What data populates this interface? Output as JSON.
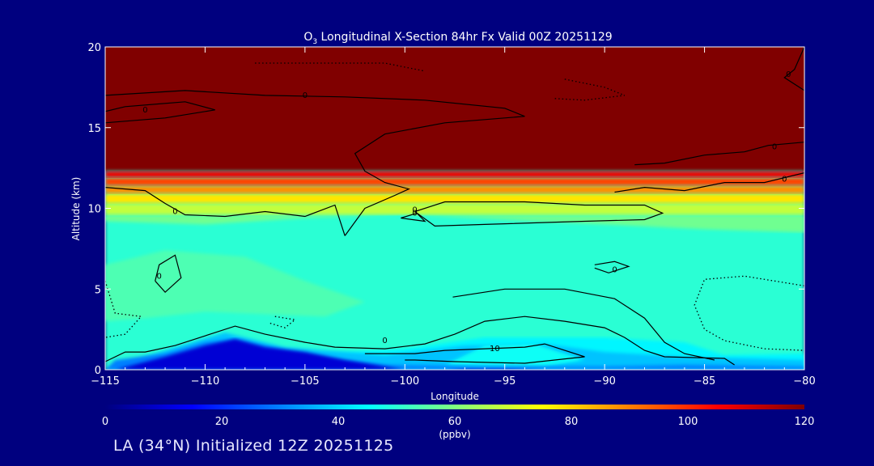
{
  "chart_data": {
    "type": "heatmap",
    "title_prefix": "O",
    "title_sub": "3",
    "title_rest": " Longitudinal X-Section 84hr  Fx Valid 00Z 20251129",
    "xlabel": "Longitude",
    "ylabel": "Altitude (km)",
    "xlim": [
      -115,
      -80
    ],
    "ylim": [
      0,
      20
    ],
    "xticks": [
      {
        "value": -115,
        "label": "−115"
      },
      {
        "value": -110,
        "label": "−110"
      },
      {
        "value": -105,
        "label": "−105"
      },
      {
        "value": -100,
        "label": "−100"
      },
      {
        "value": -95,
        "label": "−95"
      },
      {
        "value": -90,
        "label": "−90"
      },
      {
        "value": -85,
        "label": "−85"
      },
      {
        "value": -80,
        "label": "−80"
      }
    ],
    "yticks": [
      {
        "value": 0,
        "label": "0"
      },
      {
        "value": 5,
        "label": "5"
      },
      {
        "value": 10,
        "label": "10"
      },
      {
        "value": 15,
        "label": "15"
      },
      {
        "value": 20,
        "label": "20"
      }
    ],
    "colorbar": {
      "range": [
        0,
        120
      ],
      "ticks": [
        {
          "value": 0,
          "label": "0"
        },
        {
          "value": 20,
          "label": "20"
        },
        {
          "value": 40,
          "label": "40"
        },
        {
          "value": 60,
          "label": "60"
        },
        {
          "value": 80,
          "label": "80"
        },
        {
          "value": 100,
          "label": "100"
        },
        {
          "value": 120,
          "label": "120"
        }
      ],
      "unit": "(ppbv)"
    },
    "regions": [
      {
        "ppbv": 120,
        "pts": [
          [
            -115,
            12.3
          ],
          [
            -80,
            12.3
          ],
          [
            -80,
            20
          ],
          [
            -115,
            20
          ]
        ]
      },
      {
        "ppbv": 50,
        "pts": [
          [
            -115,
            0
          ],
          [
            -80,
            0
          ],
          [
            -80,
            12.3
          ],
          [
            -115,
            12.3
          ]
        ]
      },
      {
        "ppbv": 58,
        "pts": [
          [
            -115,
            9.2
          ],
          [
            -110,
            9.0
          ],
          [
            -105,
            9.4
          ],
          [
            -100,
            9.6
          ],
          [
            -95,
            9.3
          ],
          [
            -90,
            9.0
          ],
          [
            -85,
            8.7
          ],
          [
            -80,
            8.5
          ],
          [
            -80,
            9.6
          ],
          [
            -115,
            9.6
          ]
        ]
      },
      {
        "ppbv": 68,
        "pts": [
          [
            -115,
            9.6
          ],
          [
            -80,
            9.6
          ],
          [
            -80,
            10.3
          ],
          [
            -115,
            10.3
          ]
        ]
      },
      {
        "ppbv": 78,
        "pts": [
          [
            -115,
            10.3
          ],
          [
            -80,
            10.3
          ],
          [
            -80,
            10.9
          ],
          [
            -115,
            10.9
          ]
        ]
      },
      {
        "ppbv": 88,
        "pts": [
          [
            -115,
            10.9
          ],
          [
            -80,
            10.9
          ],
          [
            -80,
            11.4
          ],
          [
            -115,
            11.4
          ]
        ]
      },
      {
        "ppbv": 97,
        "pts": [
          [
            -115,
            11.4
          ],
          [
            -80,
            11.4
          ],
          [
            -80,
            11.9
          ],
          [
            -115,
            11.9
          ]
        ]
      },
      {
        "ppbv": 107,
        "pts": [
          [
            -115,
            11.9
          ],
          [
            -80,
            11.9
          ],
          [
            -80,
            12.3
          ],
          [
            -115,
            12.3
          ]
        ]
      },
      {
        "ppbv": 54,
        "pts": [
          [
            -115,
            6.5
          ],
          [
            -112,
            7.4
          ],
          [
            -108,
            7.0
          ],
          [
            -105,
            5.5
          ],
          [
            -102,
            4.2
          ],
          [
            -104,
            3.3
          ],
          [
            -110,
            3.6
          ],
          [
            -113,
            3.2
          ],
          [
            -115,
            3.0
          ]
        ]
      },
      {
        "ppbv": 44,
        "pts": [
          [
            -115,
            0
          ],
          [
            -108,
            0
          ],
          [
            -104,
            1.0
          ],
          [
            -100,
            1.3
          ],
          [
            -96,
            2.0
          ],
          [
            -90,
            2.0
          ],
          [
            -86,
            1.7
          ],
          [
            -84,
            0.9
          ],
          [
            -80,
            1.0
          ],
          [
            -80,
            0
          ],
          [
            -115,
            0
          ]
        ]
      },
      {
        "ppbv": 38,
        "pts": [
          [
            -115,
            0
          ],
          [
            -112,
            1.2
          ],
          [
            -109,
            2.3
          ],
          [
            -106,
            1.4
          ],
          [
            -101,
            0.9
          ],
          [
            -97,
            1.5
          ],
          [
            -93,
            1.6
          ],
          [
            -90,
            1.1
          ],
          [
            -86,
            0.8
          ],
          [
            -80,
            0.6
          ],
          [
            -80,
            0
          ],
          [
            -115,
            0
          ]
        ]
      },
      {
        "ppbv": 46,
        "pts": [
          [
            -98,
            0.3
          ],
          [
            -96,
            1.5
          ],
          [
            -93.5,
            1.6
          ],
          [
            -91,
            0.6
          ],
          [
            -93,
            0.2
          ]
        ]
      },
      {
        "ppbv": 30,
        "pts": [
          [
            -115,
            0
          ],
          [
            -114.5,
            0.6
          ],
          [
            -112,
            1.0
          ],
          [
            -110,
            1.7
          ],
          [
            -108.5,
            1.9
          ],
          [
            -106,
            1.2
          ],
          [
            -105,
            1.0
          ],
          [
            -103,
            0.6
          ],
          [
            -101,
            0.3
          ],
          [
            -96,
            0.2
          ],
          [
            -90,
            0.2
          ],
          [
            -86,
            0.3
          ],
          [
            -80,
            0.2
          ],
          [
            -80,
            0
          ],
          [
            -115,
            0
          ]
        ]
      },
      {
        "ppbv": 10,
        "pts": [
          [
            -114.5,
            0
          ],
          [
            -112,
            0.8
          ],
          [
            -110,
            1.5
          ],
          [
            -108.5,
            1.9
          ],
          [
            -107,
            1.4
          ],
          [
            -105,
            1.1
          ],
          [
            -103,
            0.6
          ],
          [
            -101,
            0.2
          ],
          [
            -100,
            0
          ],
          [
            -114.5,
            0
          ]
        ]
      },
      {
        "ppbv": 10,
        "pts": [
          [
            -98,
            0
          ],
          [
            -97,
            0.1
          ],
          [
            -95,
            0.1
          ],
          [
            -93,
            0
          ],
          [
            -98,
            0
          ]
        ]
      }
    ],
    "contours": [
      {
        "style": "solid",
        "label": "0",
        "lx": -105,
        "ly": 17.0,
        "pts": [
          [
            -115,
            17.0
          ],
          [
            -111,
            17.3
          ],
          [
            -107,
            17.0
          ],
          [
            -103,
            16.9
          ],
          [
            -99,
            16.7
          ],
          [
            -95,
            16.2
          ],
          [
            -94,
            15.7
          ],
          [
            -98,
            15.3
          ],
          [
            -101,
            14.6
          ],
          [
            -102.5,
            13.4
          ],
          [
            -102,
            12.3
          ],
          [
            -101,
            11.6
          ],
          [
            -99.8,
            11.2
          ],
          [
            -100.5,
            10.8
          ],
          [
            -102,
            10.0
          ],
          [
            -103,
            8.3
          ]
        ]
      },
      {
        "style": "solid",
        "label": "0",
        "lx": -113,
        "ly": 16.1,
        "pts": [
          [
            -115,
            16.0
          ],
          [
            -114,
            16.3
          ],
          [
            -111,
            16.6
          ],
          [
            -109.5,
            16.1
          ],
          [
            -112,
            15.6
          ],
          [
            -115,
            15.3
          ]
        ]
      },
      {
        "style": "solid",
        "label": "0",
        "lx": -111.5,
        "ly": 9.8,
        "pts": [
          [
            -115,
            11.3
          ],
          [
            -113,
            11.1
          ],
          [
            -112,
            10.3
          ],
          [
            -111,
            9.6
          ],
          [
            -109,
            9.5
          ],
          [
            -107,
            9.8
          ],
          [
            -105,
            9.5
          ],
          [
            -103.5,
            10.2
          ],
          [
            -103,
            8.3
          ]
        ]
      },
      {
        "style": "solid",
        "label": "0",
        "lx": -99.5,
        "ly": 9.7,
        "pts": [
          [
            -100.2,
            9.4
          ],
          [
            -99,
            9.2
          ],
          [
            -99.4,
            9.7
          ],
          [
            -100.2,
            9.4
          ]
        ]
      },
      {
        "style": "solid",
        "label": "0",
        "lx": -99.5,
        "ly": 9.9,
        "pts": [
          [
            -99.5,
            9.8
          ],
          [
            -98,
            10.4
          ],
          [
            -94,
            10.4
          ],
          [
            -91,
            10.2
          ],
          [
            -88,
            10.2
          ],
          [
            -87.1,
            9.7
          ],
          [
            -88,
            9.3
          ],
          [
            -91,
            9.2
          ],
          [
            -96,
            9.0
          ],
          [
            -98.5,
            8.9
          ],
          [
            -99.5,
            9.8
          ]
        ]
      },
      {
        "style": "solid",
        "label": "0",
        "lx": -81.5,
        "ly": 13.8,
        "pts": [
          [
            -80,
            14.1
          ],
          [
            -81.8,
            13.9
          ],
          [
            -83,
            13.5
          ],
          [
            -85,
            13.3
          ],
          [
            -87,
            12.8
          ],
          [
            -88.5,
            12.7
          ]
        ]
      },
      {
        "style": "solid",
        "label": "0",
        "lx": -81,
        "ly": 11.8,
        "pts": [
          [
            -80,
            12.2
          ],
          [
            -82,
            11.6
          ],
          [
            -84,
            11.6
          ],
          [
            -86,
            11.1
          ],
          [
            -88,
            11.3
          ],
          [
            -89.5,
            11.0
          ]
        ]
      },
      {
        "style": "solid",
        "label": "0",
        "lx": -80.8,
        "ly": 18.3,
        "pts": [
          [
            -80,
            20
          ],
          [
            -80.5,
            18.6
          ],
          [
            -81,
            18.1
          ],
          [
            -80,
            17.3
          ]
        ]
      },
      {
        "style": "solid",
        "label": "0",
        "lx": -112.3,
        "ly": 5.8,
        "pts": [
          [
            -112.5,
            5.5
          ],
          [
            -112.3,
            6.5
          ],
          [
            -111.5,
            7.1
          ],
          [
            -111.2,
            5.7
          ],
          [
            -112,
            4.8
          ],
          [
            -112.5,
            5.5
          ]
        ]
      },
      {
        "style": "solid",
        "label": "0",
        "lx": -89.5,
        "ly": 6.2,
        "pts": [
          [
            -90.5,
            6.5
          ],
          [
            -89.5,
            6.7
          ],
          [
            -88.8,
            6.4
          ],
          [
            -89.8,
            6.0
          ],
          [
            -90.5,
            6.3
          ]
        ]
      },
      {
        "style": "solid",
        "label": "0",
        "lx": -101,
        "ly": 1.8,
        "pts": [
          [
            -115,
            0.5
          ],
          [
            -114,
            1.1
          ],
          [
            -113,
            1.1
          ],
          [
            -111.5,
            1.5
          ],
          [
            -108.5,
            2.7
          ],
          [
            -107,
            2.2
          ],
          [
            -105,
            1.7
          ],
          [
            -103.5,
            1.4
          ],
          [
            -101,
            1.3
          ],
          [
            -99,
            1.6
          ],
          [
            -97.5,
            2.2
          ],
          [
            -96,
            3.0
          ],
          [
            -94,
            3.3
          ],
          [
            -92,
            3.0
          ],
          [
            -90,
            2.6
          ],
          [
            -89,
            2.0
          ],
          [
            -88,
            1.2
          ],
          [
            -87,
            0.8
          ],
          [
            -84,
            0.7
          ],
          [
            -83.5,
            0.3
          ]
        ]
      },
      {
        "style": "solid",
        "label": "10",
        "lx": -95.5,
        "ly": 1.3,
        "pts": [
          [
            -102,
            1.0
          ],
          [
            -99.5,
            1.0
          ],
          [
            -98,
            1.2
          ],
          [
            -96,
            1.3
          ],
          [
            -94,
            1.4
          ],
          [
            -93,
            1.6
          ],
          [
            -91,
            0.8
          ],
          [
            -94,
            0.4
          ],
          [
            -97.5,
            0.5
          ],
          [
            -99.5,
            0.6
          ],
          [
            -100,
            0.6
          ]
        ]
      },
      {
        "style": "solid",
        "label": "",
        "lx": 0,
        "ly": 0,
        "pts": [
          [
            -97.6,
            4.5
          ],
          [
            -95,
            5.0
          ],
          [
            -92,
            5.0
          ],
          [
            -89.5,
            4.4
          ],
          [
            -88,
            3.2
          ],
          [
            -87,
            1.7
          ],
          [
            -86,
            1.0
          ],
          [
            -84.5,
            0.6
          ]
        ]
      },
      {
        "style": "dotted",
        "label": "",
        "lx": 0,
        "ly": 0,
        "pts": [
          [
            -115,
            5.5
          ],
          [
            -114.5,
            3.5
          ],
          [
            -113.2,
            3.3
          ],
          [
            -114,
            2.2
          ],
          [
            -115,
            2.0
          ]
        ]
      },
      {
        "style": "dotted",
        "label": "",
        "lx": 0,
        "ly": 0,
        "pts": [
          [
            -106.5,
            3.3
          ],
          [
            -105.5,
            3.1
          ],
          [
            -106,
            2.6
          ],
          [
            -106.8,
            2.9
          ]
        ]
      },
      {
        "style": "dotted",
        "label": "",
        "lx": 0,
        "ly": 0,
        "pts": [
          [
            -80,
            5.2
          ],
          [
            -83,
            5.8
          ],
          [
            -85,
            5.6
          ],
          [
            -85.5,
            4.0
          ],
          [
            -85,
            2.5
          ],
          [
            -84,
            1.8
          ],
          [
            -82,
            1.3
          ],
          [
            -80,
            1.2
          ]
        ]
      },
      {
        "style": "dotted",
        "label": "",
        "lx": 0,
        "ly": 0,
        "pts": [
          [
            -107.5,
            19.0
          ],
          [
            -103,
            19.0
          ],
          [
            -101,
            19.0
          ],
          [
            -99,
            18.5
          ]
        ]
      },
      {
        "style": "dotted",
        "label": "",
        "lx": 0,
        "ly": 0,
        "pts": [
          [
            -92,
            18.0
          ],
          [
            -90,
            17.5
          ],
          [
            -89,
            17.0
          ],
          [
            -91,
            16.7
          ],
          [
            -92.5,
            16.8
          ]
        ]
      }
    ]
  },
  "footer": {
    "text": "LA (34°N) Initialized 12Z 20251125"
  }
}
